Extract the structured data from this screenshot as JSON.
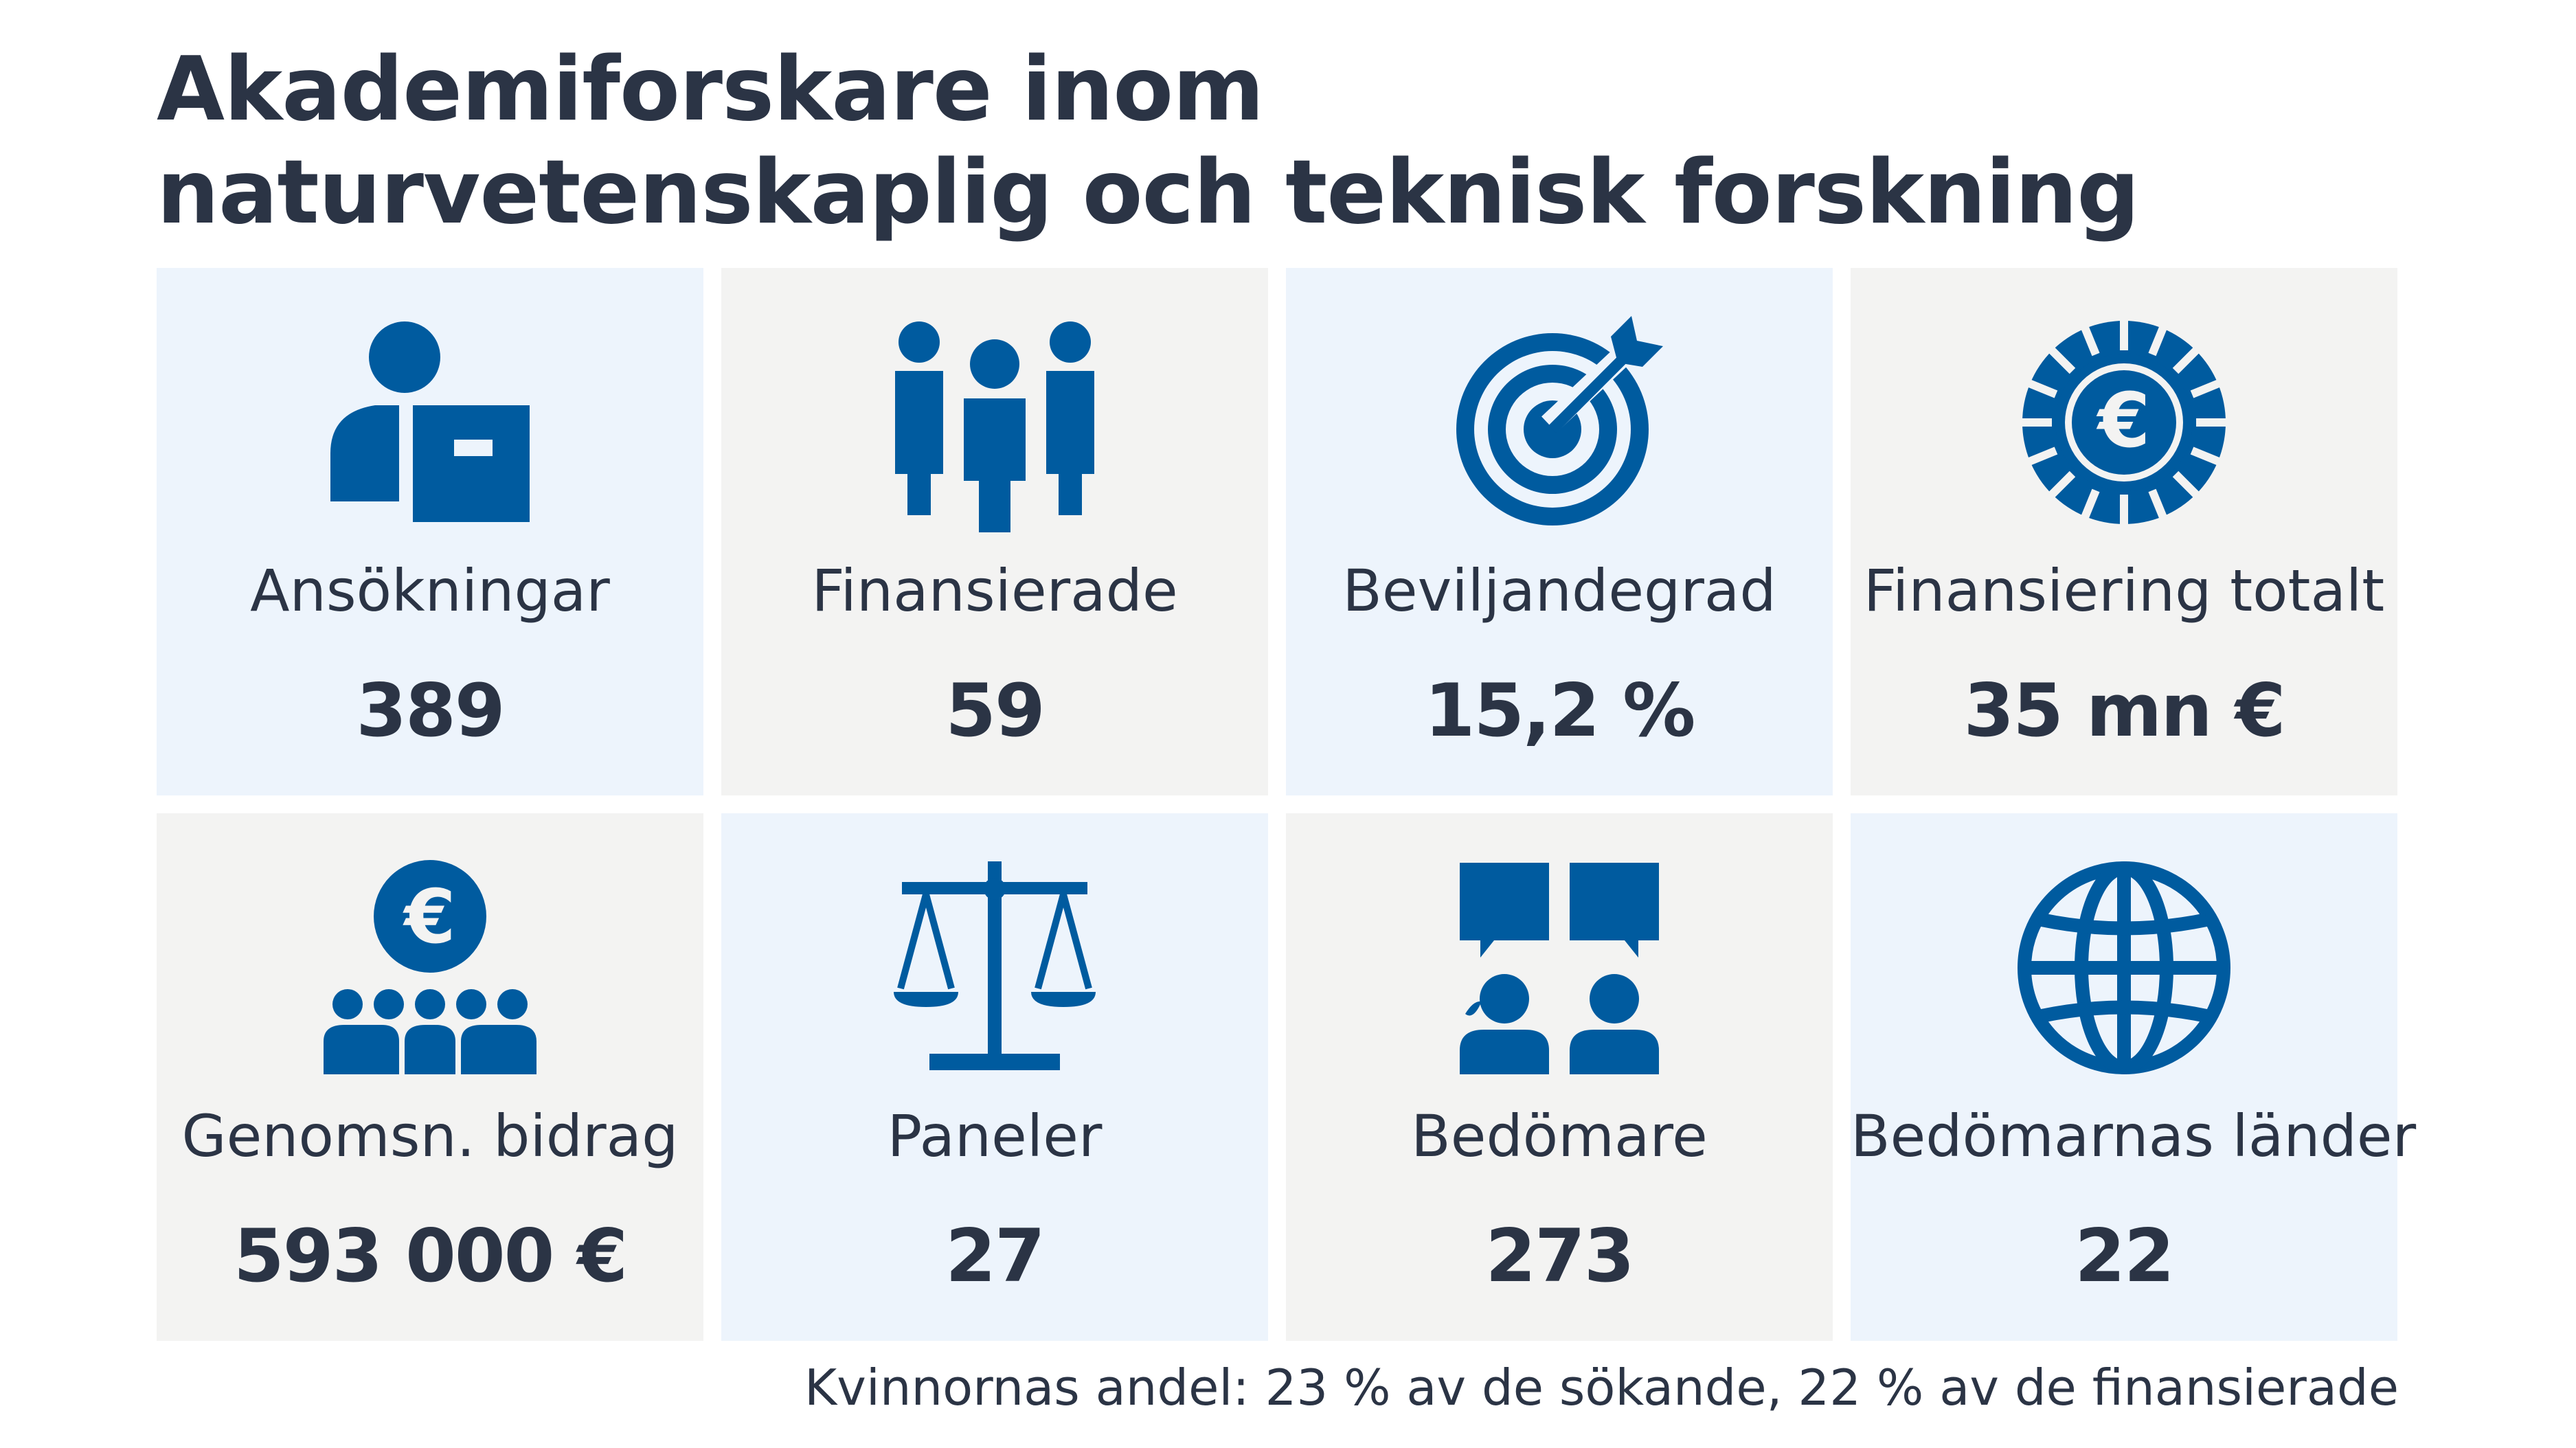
{
  "title": {
    "line1": "Akademiforskare inom",
    "line2": "naturvetenskaplig och teknisk forskning"
  },
  "accent_color": "#005b9f",
  "tiles": [
    {
      "label": "Ansökningar",
      "value": "389",
      "icon": "applicant-icon",
      "bg": "blue"
    },
    {
      "label": "Finansierade",
      "value": "59",
      "icon": "people-group-icon",
      "bg": "grey"
    },
    {
      "label": "Beviljandegrad",
      "value": "15,2 %",
      "icon": "target-icon",
      "bg": "blue"
    },
    {
      "label": "Finansiering totalt",
      "value": "35 mn €",
      "icon": "euro-coin-icon",
      "bg": "grey"
    },
    {
      "label": "Genomsn. bidrag",
      "value": "593 000 €",
      "icon": "euro-people-icon",
      "bg": "grey"
    },
    {
      "label": "Paneler",
      "value": "27",
      "icon": "scales-icon",
      "bg": "blue"
    },
    {
      "label": "Bedömare",
      "value": "273",
      "icon": "reviewers-icon",
      "bg": "grey"
    },
    {
      "label": "Bedömarnas länder",
      "value": "22",
      "icon": "globe-icon",
      "bg": "blue"
    }
  ],
  "footer": {
    "prefix": "Kvinnornas andel: ",
    "applicants_share": "23 %",
    "applicants_text": " av de sökande, ",
    "funded_share": "22 %",
    "funded_text": " av de finansierade"
  }
}
